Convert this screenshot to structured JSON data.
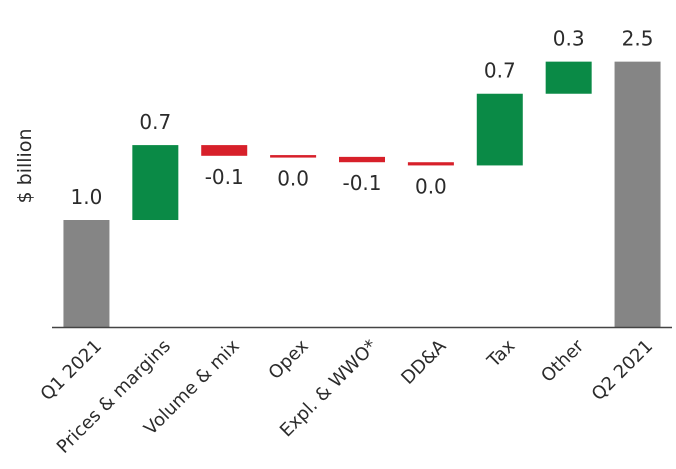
{
  "chart_data": {
    "type": "bar",
    "subtype": "waterfall",
    "title": "",
    "xlabel": "",
    "ylabel": "$ billion",
    "ylim": [
      0,
      2.7
    ],
    "grid": false,
    "legend": "none",
    "categories": [
      "Q1 2021",
      "Prices & margins",
      "Volume & mix",
      "Opex",
      "Expl. & WWO*",
      "DD&A",
      "Tax",
      "Other",
      "Q2 2021"
    ],
    "bars": [
      {
        "category": "Q1 2021",
        "kind": "total",
        "start": 0,
        "end": 1.0,
        "label": "1.0"
      },
      {
        "category": "Prices & margins",
        "kind": "change",
        "start": 1.0,
        "end": 1.7,
        "label": "0.7"
      },
      {
        "category": "Volume & mix",
        "kind": "change",
        "start": 1.7,
        "end": 1.6,
        "label": "-0.1"
      },
      {
        "category": "Opex",
        "kind": "change",
        "start": 1.6,
        "end": 1.59,
        "label": "0.0"
      },
      {
        "category": "Expl. & WWO*",
        "kind": "change",
        "start": 1.59,
        "end": 1.54,
        "label": "-0.1"
      },
      {
        "category": "DD&A",
        "kind": "change",
        "start": 1.54,
        "end": 1.51,
        "label": "0.0"
      },
      {
        "category": "Tax",
        "kind": "change",
        "start": 1.51,
        "end": 2.18,
        "label": "0.7"
      },
      {
        "category": "Other",
        "kind": "change",
        "start": 2.18,
        "end": 2.48,
        "label": "0.3"
      },
      {
        "category": "Q2 2021",
        "kind": "total",
        "start": 0,
        "end": 2.48,
        "label": "2.5"
      }
    ],
    "colors": {
      "total": "#858585",
      "increase": "#0a8a46",
      "decrease": "#d7202a",
      "axis": "#444444"
    }
  }
}
